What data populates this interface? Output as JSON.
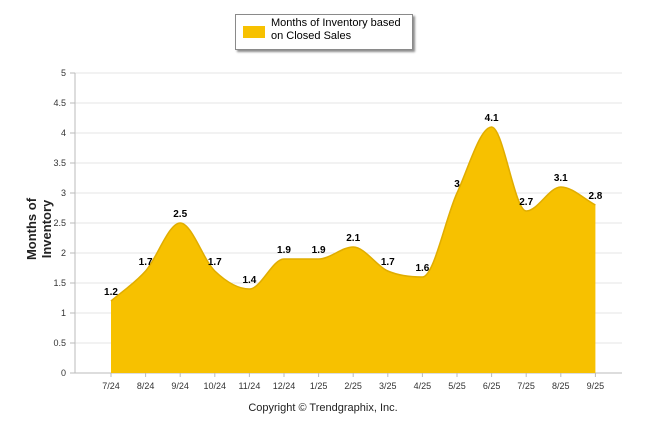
{
  "legend": {
    "label": "Months of Inventory based on Closed Sales"
  },
  "footer": {
    "copyright": "Copyright © Trendgraphix, Inc."
  },
  "chart_data": {
    "type": "area",
    "categories": [
      "7/24",
      "8/24",
      "9/24",
      "10/24",
      "11/24",
      "12/24",
      "1/25",
      "2/25",
      "3/25",
      "4/25",
      "5/25",
      "6/25",
      "7/25",
      "8/25",
      "9/25"
    ],
    "series": [
      {
        "name": "Months of Inventory based on Closed Sales",
        "values": [
          1.2,
          1.7,
          2.5,
          1.7,
          1.4,
          1.9,
          1.9,
          2.1,
          1.7,
          1.6,
          3,
          4.1,
          2.7,
          3.1,
          2.8
        ],
        "data_labels": [
          "1.2",
          "1.7",
          "2.5",
          "1.7",
          "1.4",
          "1.9",
          "1.9",
          "2.1",
          "1.7",
          "1.6",
          "3",
          "4.1",
          "2.7",
          "3.1",
          "2.8"
        ],
        "color": "#F7C100"
      }
    ],
    "ylabel": "Months of Inventory",
    "xlabel": "",
    "ylim": [
      0,
      5
    ],
    "yticks": [
      "0",
      "0.5",
      "1",
      "1.5",
      "2",
      "2.5",
      "3",
      "3.5",
      "4",
      "4.5",
      "5"
    ],
    "grid": true,
    "legend_position": "top-center"
  }
}
